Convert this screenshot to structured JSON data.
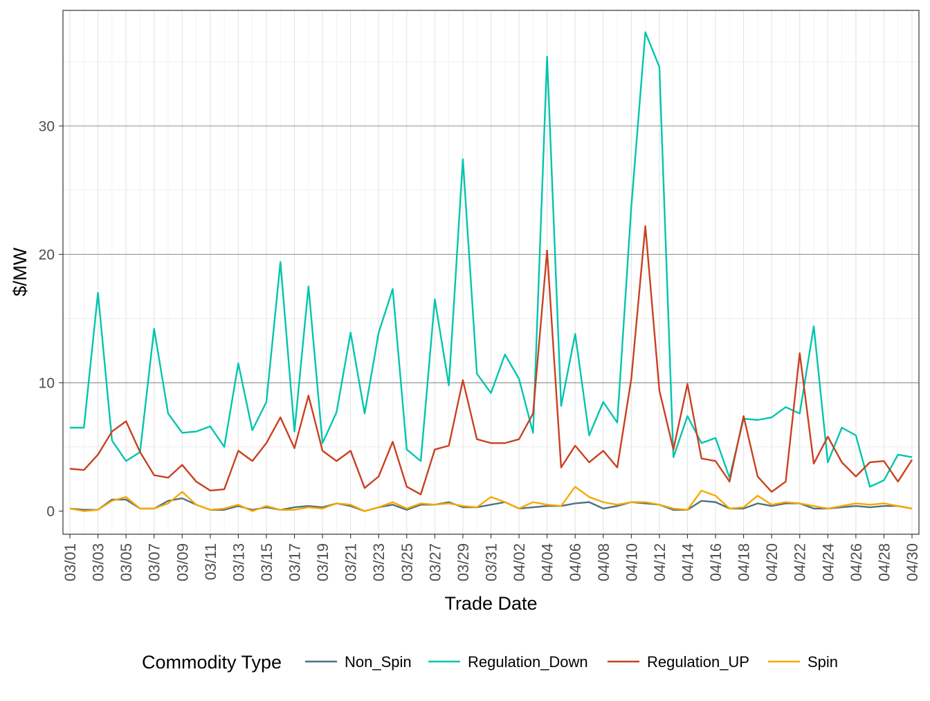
{
  "chart_data": {
    "type": "line",
    "title": "",
    "xlabel": "Trade Date",
    "ylabel": "$/MW",
    "ylim": [
      -1.8,
      39
    ],
    "yticks": [
      0,
      10,
      20,
      30
    ],
    "grid": true,
    "legend_placement": "bottom",
    "legend_title": "Commodity Type",
    "x": [
      "03/01",
      "03/02",
      "03/03",
      "03/04",
      "03/05",
      "03/06",
      "03/07",
      "03/08",
      "03/09",
      "03/10",
      "03/11",
      "03/12",
      "03/13",
      "03/14",
      "03/15",
      "03/16",
      "03/17",
      "03/18",
      "03/19",
      "03/20",
      "03/21",
      "03/22",
      "03/23",
      "03/24",
      "03/25",
      "03/26",
      "03/27",
      "03/28",
      "03/29",
      "03/30",
      "03/31",
      "04/01",
      "04/02",
      "04/03",
      "04/04",
      "04/05",
      "04/06",
      "04/07",
      "04/08",
      "04/09",
      "04/10",
      "04/11",
      "04/12",
      "04/13",
      "04/14",
      "04/15",
      "04/16",
      "04/17",
      "04/18",
      "04/19",
      "04/20",
      "04/21",
      "04/22",
      "04/23",
      "04/24",
      "04/25",
      "04/26",
      "04/27",
      "04/28",
      "04/29",
      "04/30"
    ],
    "x_tick_labels": [
      "03/01",
      "03/03",
      "03/05",
      "03/07",
      "03/09",
      "03/11",
      "03/13",
      "03/15",
      "03/17",
      "03/19",
      "03/21",
      "03/23",
      "03/25",
      "03/27",
      "03/29",
      "03/31",
      "04/02",
      "04/04",
      "04/06",
      "04/08",
      "04/10",
      "04/12",
      "04/14",
      "04/16",
      "04/18",
      "04/20",
      "04/22",
      "04/24",
      "04/26",
      "04/28",
      "04/30"
    ],
    "series": [
      {
        "name": "Non_Spin",
        "color": "#4f7081",
        "values": [
          0.2,
          0.1,
          0.1,
          0.9,
          0.9,
          0.2,
          0.2,
          0.8,
          1.0,
          0.5,
          0.1,
          0.1,
          0.4,
          0.1,
          0.3,
          0.1,
          0.3,
          0.4,
          0.3,
          0.6,
          0.4,
          0.0,
          0.3,
          0.5,
          0.1,
          0.5,
          0.5,
          0.7,
          0.3,
          0.3,
          0.5,
          0.7,
          0.2,
          0.3,
          0.4,
          0.4,
          0.6,
          0.7,
          0.2,
          0.4,
          0.7,
          0.6,
          0.5,
          0.1,
          0.1,
          0.8,
          0.7,
          0.2,
          0.2,
          0.6,
          0.4,
          0.6,
          0.6,
          0.2,
          0.2,
          0.3,
          0.4,
          0.3,
          0.4,
          0.4,
          0.2
        ]
      },
      {
        "name": "Regulation_Down",
        "color": "#00c5ad",
        "values": [
          6.5,
          6.5,
          17.0,
          5.5,
          3.9,
          4.6,
          14.2,
          7.6,
          6.1,
          6.2,
          6.6,
          5.0,
          11.5,
          6.3,
          8.5,
          19.4,
          6.2,
          17.5,
          5.3,
          7.7,
          13.9,
          7.6,
          13.9,
          17.3,
          4.8,
          3.9,
          16.5,
          9.8,
          27.4,
          10.7,
          9.2,
          12.2,
          10.3,
          6.1,
          35.4,
          8.2,
          13.8,
          5.9,
          8.5,
          6.9,
          23.7,
          37.3,
          34.6,
          4.2,
          7.4,
          5.3,
          5.7,
          2.6,
          7.2,
          7.1,
          7.3,
          8.1,
          7.6,
          14.4,
          3.8,
          6.5,
          5.9,
          1.9,
          2.4,
          4.4,
          4.2
        ]
      },
      {
        "name": "Regulation_UP",
        "color": "#c9401f",
        "values": [
          3.3,
          3.2,
          4.4,
          6.2,
          7.0,
          4.6,
          2.8,
          2.6,
          3.6,
          2.3,
          1.6,
          1.7,
          4.7,
          3.9,
          5.3,
          7.3,
          4.9,
          9.0,
          4.7,
          3.9,
          4.7,
          1.8,
          2.7,
          5.4,
          1.9,
          1.3,
          4.8,
          5.1,
          10.2,
          5.6,
          5.3,
          5.3,
          5.6,
          7.6,
          20.3,
          3.4,
          5.1,
          3.8,
          4.7,
          3.4,
          10.3,
          22.2,
          9.4,
          4.8,
          9.9,
          4.1,
          3.9,
          2.3,
          7.4,
          2.7,
          1.5,
          2.3,
          12.3,
          3.7,
          5.8,
          3.8,
          2.7,
          3.8,
          3.9,
          2.3,
          4.0
        ]
      },
      {
        "name": "Spin",
        "color": "#f7a800",
        "values": [
          0.2,
          0.0,
          0.1,
          0.8,
          1.1,
          0.2,
          0.2,
          0.6,
          1.5,
          0.5,
          0.1,
          0.2,
          0.5,
          0.0,
          0.4,
          0.1,
          0.1,
          0.3,
          0.2,
          0.6,
          0.5,
          0.0,
          0.3,
          0.7,
          0.2,
          0.6,
          0.5,
          0.6,
          0.4,
          0.3,
          1.1,
          0.7,
          0.2,
          0.7,
          0.5,
          0.4,
          1.9,
          1.1,
          0.7,
          0.5,
          0.7,
          0.7,
          0.5,
          0.2,
          0.1,
          1.6,
          1.2,
          0.2,
          0.3,
          1.2,
          0.5,
          0.7,
          0.6,
          0.4,
          0.2,
          0.4,
          0.6,
          0.5,
          0.6,
          0.4,
          0.2
        ]
      }
    ]
  }
}
